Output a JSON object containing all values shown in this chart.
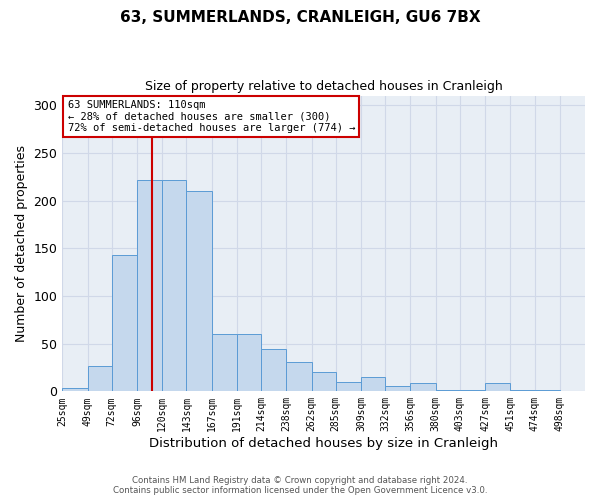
{
  "title": "63, SUMMERLANDS, CRANLEIGH, GU6 7BX",
  "subtitle": "Size of property relative to detached houses in Cranleigh",
  "xlabel": "Distribution of detached houses by size in Cranleigh",
  "ylabel": "Number of detached properties",
  "bar_left_edges": [
    25,
    49,
    72,
    96,
    120,
    143,
    167,
    191,
    214,
    238,
    262,
    285,
    309,
    332,
    356,
    380,
    403,
    427,
    451,
    474
  ],
  "bar_widths": [
    24,
    23,
    24,
    24,
    23,
    24,
    24,
    23,
    24,
    24,
    23,
    24,
    23,
    24,
    24,
    23,
    24,
    24,
    23,
    24
  ],
  "bar_heights": [
    3,
    27,
    143,
    222,
    222,
    210,
    60,
    60,
    44,
    31,
    20,
    10,
    15,
    6,
    9,
    1,
    1,
    9,
    1,
    1
  ],
  "bar_color": "#c5d8ed",
  "bar_edge_color": "#5b9bd5",
  "grid_color": "#d0d8e8",
  "background_color": "#e8eef5",
  "vline_x": 110,
  "vline_color": "#cc0000",
  "ylim": [
    0,
    310
  ],
  "yticks": [
    0,
    50,
    100,
    150,
    200,
    250,
    300
  ],
  "xtick_labels": [
    "25sqm",
    "49sqm",
    "72sqm",
    "96sqm",
    "120sqm",
    "143sqm",
    "167sqm",
    "191sqm",
    "214sqm",
    "238sqm",
    "262sqm",
    "285sqm",
    "309sqm",
    "332sqm",
    "356sqm",
    "380sqm",
    "403sqm",
    "427sqm",
    "451sqm",
    "474sqm",
    "498sqm"
  ],
  "xtick_positions": [
    25,
    49,
    72,
    96,
    120,
    143,
    167,
    191,
    214,
    238,
    262,
    285,
    309,
    332,
    356,
    380,
    403,
    427,
    451,
    474,
    498
  ],
  "annotation_line1": "63 SUMMERLANDS: 110sqm",
  "annotation_line2": "← 28% of detached houses are smaller (300)",
  "annotation_line3": "72% of semi-detached houses are larger (774) →",
  "footer_line1": "Contains HM Land Registry data © Crown copyright and database right 2024.",
  "footer_line2": "Contains public sector information licensed under the Open Government Licence v3.0."
}
